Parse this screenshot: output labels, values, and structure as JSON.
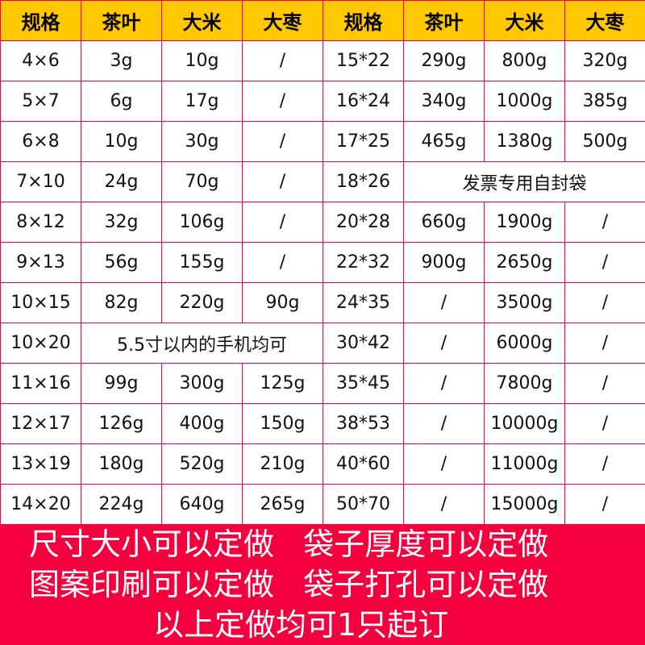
{
  "colors": {
    "header_bg": "#ffc800",
    "border": "#f0004a",
    "banner_bg": "#f5003e"
  },
  "headers": [
    "规格",
    "茶叶",
    "大米",
    "大枣",
    "规格",
    "茶叶",
    "大米",
    "大枣"
  ],
  "rows": [
    [
      [
        "4×6"
      ],
      [
        "3g"
      ],
      [
        "10g"
      ],
      [
        "/"
      ],
      [
        "15*22"
      ],
      [
        "290g"
      ],
      [
        "800g"
      ],
      [
        "320g"
      ]
    ],
    [
      [
        "5×7"
      ],
      [
        "6g"
      ],
      [
        "17g"
      ],
      [
        "/"
      ],
      [
        "16*24"
      ],
      [
        "340g"
      ],
      [
        "1000g"
      ],
      [
        "385g"
      ]
    ],
    [
      [
        "6×8"
      ],
      [
        "10g"
      ],
      [
        "30g"
      ],
      [
        "/"
      ],
      [
        "17*25"
      ],
      [
        "465g"
      ],
      [
        "1380g"
      ],
      [
        "500g"
      ]
    ],
    [
      [
        "7×10"
      ],
      [
        "24g"
      ],
      [
        "70g"
      ],
      [
        "/"
      ],
      [
        "18*26"
      ],
      [
        "发票专用自封袋",
        3
      ]
    ],
    [
      [
        "8×12"
      ],
      [
        "32g"
      ],
      [
        "106g"
      ],
      [
        "/"
      ],
      [
        "20*28"
      ],
      [
        "660g"
      ],
      [
        "1900g"
      ],
      [
        "/"
      ]
    ],
    [
      [
        "9×13"
      ],
      [
        "56g"
      ],
      [
        "155g"
      ],
      [
        "/"
      ],
      [
        "22*32"
      ],
      [
        "900g"
      ],
      [
        "2650g"
      ],
      [
        "/"
      ]
    ],
    [
      [
        "10×15"
      ],
      [
        "82g"
      ],
      [
        "220g"
      ],
      [
        "90g"
      ],
      [
        "24*35"
      ],
      [
        "/"
      ],
      [
        "3500g"
      ],
      [
        "/"
      ]
    ],
    [
      [
        "10×20"
      ],
      [
        "5.5寸以内的手机均可",
        3
      ],
      [
        "30*42"
      ],
      [
        "/"
      ],
      [
        "6000g"
      ],
      [
        "/"
      ]
    ],
    [
      [
        "11×16"
      ],
      [
        "99g"
      ],
      [
        "300g"
      ],
      [
        "125g"
      ],
      [
        "35*45"
      ],
      [
        "/"
      ],
      [
        "7800g"
      ],
      [
        "/"
      ]
    ],
    [
      [
        "12×17"
      ],
      [
        "126g"
      ],
      [
        "400g"
      ],
      [
        "150g"
      ],
      [
        "38*53"
      ],
      [
        "/"
      ],
      [
        "10000g"
      ],
      [
        "/"
      ]
    ],
    [
      [
        "13×19"
      ],
      [
        "180g"
      ],
      [
        "520g"
      ],
      [
        "210g"
      ],
      [
        "40*60"
      ],
      [
        "/"
      ],
      [
        "11000g"
      ],
      [
        "/"
      ]
    ],
    [
      [
        "14×20"
      ],
      [
        "224g"
      ],
      [
        "640g"
      ],
      [
        "265g"
      ],
      [
        "50*70"
      ],
      [
        "/"
      ],
      [
        "15000g"
      ],
      [
        "/"
      ]
    ]
  ],
  "banner": {
    "line1": "尺寸大小可以定做   袋子厚度可以定做",
    "line2": "图案印刷可以定做   袋子打孔可以定做",
    "line3": "以上定做均可1只起订"
  }
}
